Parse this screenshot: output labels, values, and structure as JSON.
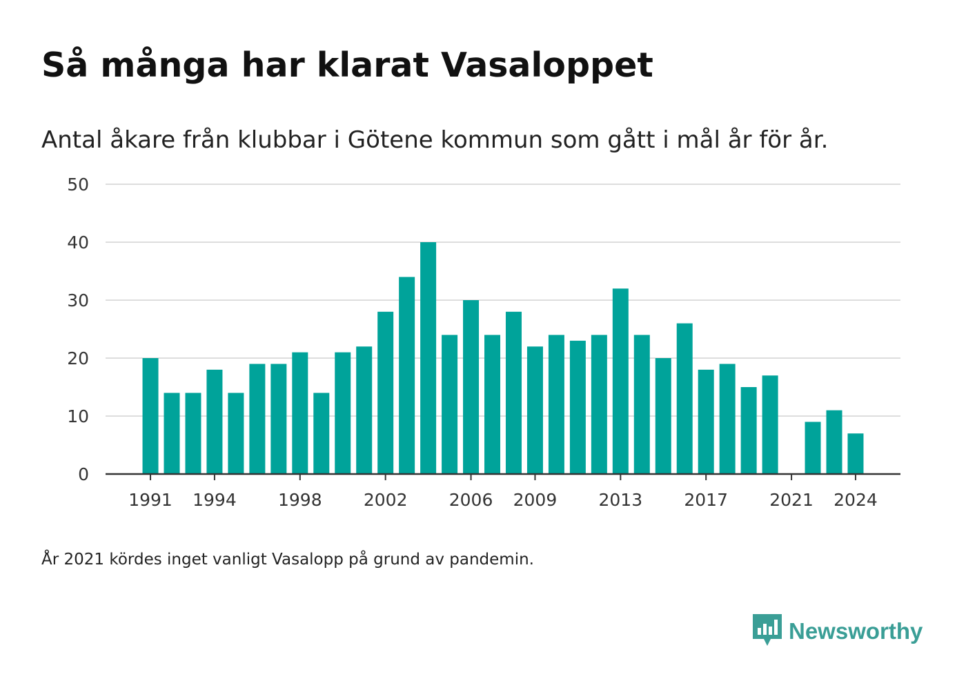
{
  "title": "Så många har klarat Vasaloppet",
  "subtitle": "Antal åkare från klubbar i Götene kommun som gått i mål år för år.",
  "note": "År 2021 kördes inget vanligt Vasalopp på grund av pandemin.",
  "brand": {
    "name": "Newsworthy",
    "icon": "newsworthy-logo-icon",
    "color": "#3a9e96"
  },
  "chart_data": {
    "type": "bar",
    "x": [
      1991,
      1992,
      1993,
      1994,
      1995,
      1996,
      1997,
      1998,
      1999,
      2000,
      2001,
      2002,
      2003,
      2004,
      2005,
      2006,
      2007,
      2008,
      2009,
      2010,
      2011,
      2012,
      2013,
      2014,
      2015,
      2016,
      2017,
      2018,
      2019,
      2020,
      2021,
      2022,
      2023,
      2024
    ],
    "values": [
      20,
      14,
      14,
      18,
      14,
      19,
      19,
      21,
      14,
      21,
      22,
      28,
      34,
      40,
      24,
      30,
      24,
      28,
      22,
      24,
      23,
      24,
      32,
      24,
      20,
      26,
      18,
      19,
      15,
      17,
      null,
      9,
      11,
      7
    ],
    "x_ticks": [
      "1991",
      "1994",
      "1998",
      "2002",
      "2006",
      "2009",
      "2013",
      "2017",
      "2021",
      "2024"
    ],
    "y_ticks": [
      "0",
      "10",
      "20",
      "30",
      "40",
      "50"
    ],
    "ylim": [
      0,
      50
    ],
    "xlim": [
      1988.9,
      2026.1
    ],
    "grid": true,
    "bar_color": "#00a39a",
    "gridline_color": "#dddddd",
    "axis_color": "#333333"
  }
}
